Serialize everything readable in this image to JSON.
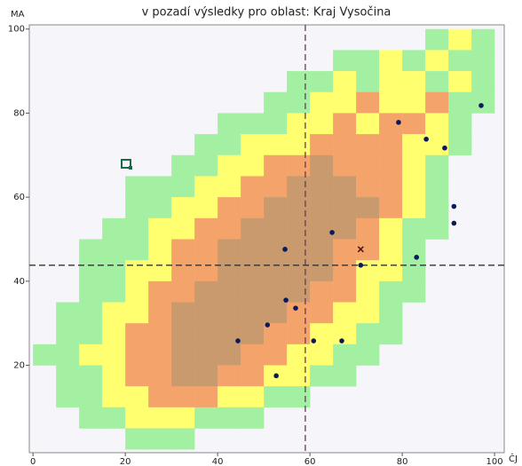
{
  "chart_data": {
    "type": "scatter",
    "title": "v pozadí výsledky pro oblast: Kraj Vysočina",
    "x_label": "ČJ",
    "y_label": "MA",
    "xlim": [
      -0.8,
      102.1
    ],
    "ylim": [
      -0.8,
      101
    ],
    "xticks": [
      0,
      20,
      40,
      60,
      80,
      100
    ],
    "yticks": [
      20,
      40,
      60,
      80,
      100
    ],
    "color": "#0a1a5c",
    "x": [
      97.1,
      79.2,
      85.2,
      89.2,
      91.2,
      91.2,
      64.8,
      54.6,
      83.1,
      71.0,
      54.8,
      56.9,
      50.8,
      44.4,
      60.8,
      66.9,
      52.7
    ],
    "values": [
      81.8,
      77.8,
      73.8,
      71.7,
      57.8,
      53.8,
      51.6,
      47.6,
      45.7,
      43.8,
      35.5,
      33.6,
      29.6,
      25.8,
      25.8,
      25.8,
      17.5
    ],
    "marker": {
      "x": 71.0,
      "y": 47.6,
      "color": "#4a1a1a"
    },
    "reference_lines": {
      "x": 59.0,
      "y": 43.8,
      "color": "#6a3a5a"
    },
    "heatmap": {
      "colors": [
        "#a3f0a3",
        "#ffff70",
        "#f4a46a",
        "#c99a6e"
      ],
      "levels": [
        [
          0,
          0,
          0,
          0,
          0,
          0,
          0,
          0,
          0,
          0,
          0,
          0,
          0,
          0,
          0,
          0,
          0,
          1,
          2,
          1
        ],
        [
          0,
          0,
          0,
          0,
          0,
          0,
          0,
          0,
          0,
          0,
          0,
          0,
          0,
          1,
          1,
          2,
          1,
          2,
          1,
          1
        ],
        [
          0,
          0,
          0,
          0,
          0,
          0,
          0,
          0,
          0,
          0,
          0,
          1,
          1,
          2,
          1,
          2,
          2,
          1,
          2,
          1
        ],
        [
          0,
          0,
          0,
          0,
          0,
          0,
          0,
          0,
          0,
          0,
          1,
          1,
          2,
          2,
          3,
          2,
          2,
          3,
          1,
          1
        ],
        [
          0,
          0,
          0,
          0,
          0,
          0,
          0,
          0,
          1,
          1,
          1,
          2,
          2,
          3,
          2,
          3,
          3,
          2,
          1,
          0
        ],
        [
          0,
          0,
          0,
          0,
          0,
          0,
          0,
          1,
          1,
          2,
          2,
          2,
          3,
          3,
          3,
          3,
          2,
          2,
          1,
          0
        ],
        [
          0,
          0,
          0,
          0,
          0,
          0,
          1,
          1,
          2,
          2,
          3,
          3,
          4,
          3,
          3,
          3,
          2,
          1,
          0,
          0
        ],
        [
          0,
          0,
          0,
          0,
          1,
          1,
          1,
          2,
          2,
          3,
          3,
          4,
          4,
          4,
          3,
          3,
          2,
          1,
          0,
          0
        ],
        [
          0,
          0,
          0,
          0,
          1,
          1,
          2,
          2,
          3,
          3,
          4,
          4,
          4,
          4,
          4,
          3,
          2,
          1,
          0,
          0
        ],
        [
          0,
          0,
          0,
          1,
          1,
          2,
          2,
          3,
          3,
          4,
          4,
          4,
          4,
          4,
          3,
          2,
          1,
          1,
          0,
          0
        ],
        [
          0,
          0,
          1,
          1,
          1,
          2,
          3,
          3,
          4,
          4,
          4,
          4,
          4,
          3,
          3,
          2,
          1,
          0,
          0,
          0
        ],
        [
          0,
          0,
          1,
          1,
          2,
          2,
          3,
          3,
          4,
          4,
          4,
          4,
          4,
          3,
          2,
          2,
          1,
          0,
          0,
          0
        ],
        [
          0,
          0,
          1,
          1,
          2,
          3,
          3,
          4,
          4,
          4,
          4,
          4,
          3,
          3,
          2,
          1,
          1,
          0,
          0,
          0
        ],
        [
          0,
          1,
          1,
          2,
          2,
          3,
          4,
          4,
          4,
          4,
          4,
          3,
          3,
          2,
          2,
          1,
          0,
          0,
          0,
          0
        ],
        [
          0,
          1,
          1,
          2,
          3,
          3,
          4,
          4,
          4,
          4,
          3,
          3,
          2,
          2,
          1,
          1,
          0,
          0,
          0,
          0
        ],
        [
          1,
          1,
          2,
          2,
          3,
          3,
          4,
          4,
          4,
          3,
          3,
          2,
          2,
          1,
          1,
          0,
          0,
          0,
          0,
          0
        ],
        [
          0,
          1,
          1,
          2,
          3,
          3,
          4,
          4,
          3,
          3,
          2,
          2,
          1,
          1,
          0,
          0,
          0,
          0,
          0,
          0
        ],
        [
          0,
          1,
          1,
          2,
          2,
          3,
          3,
          3,
          2,
          2,
          1,
          1,
          0,
          0,
          0,
          0,
          0,
          0,
          0,
          0
        ],
        [
          0,
          0,
          1,
          1,
          2,
          2,
          2,
          1,
          1,
          1,
          0,
          0,
          0,
          0,
          0,
          0,
          0,
          0,
          0,
          0
        ],
        [
          0,
          0,
          0,
          0,
          1,
          1,
          1,
          0,
          0,
          0,
          0,
          0,
          0,
          0,
          0,
          0,
          0,
          0,
          0,
          0
        ]
      ]
    }
  }
}
